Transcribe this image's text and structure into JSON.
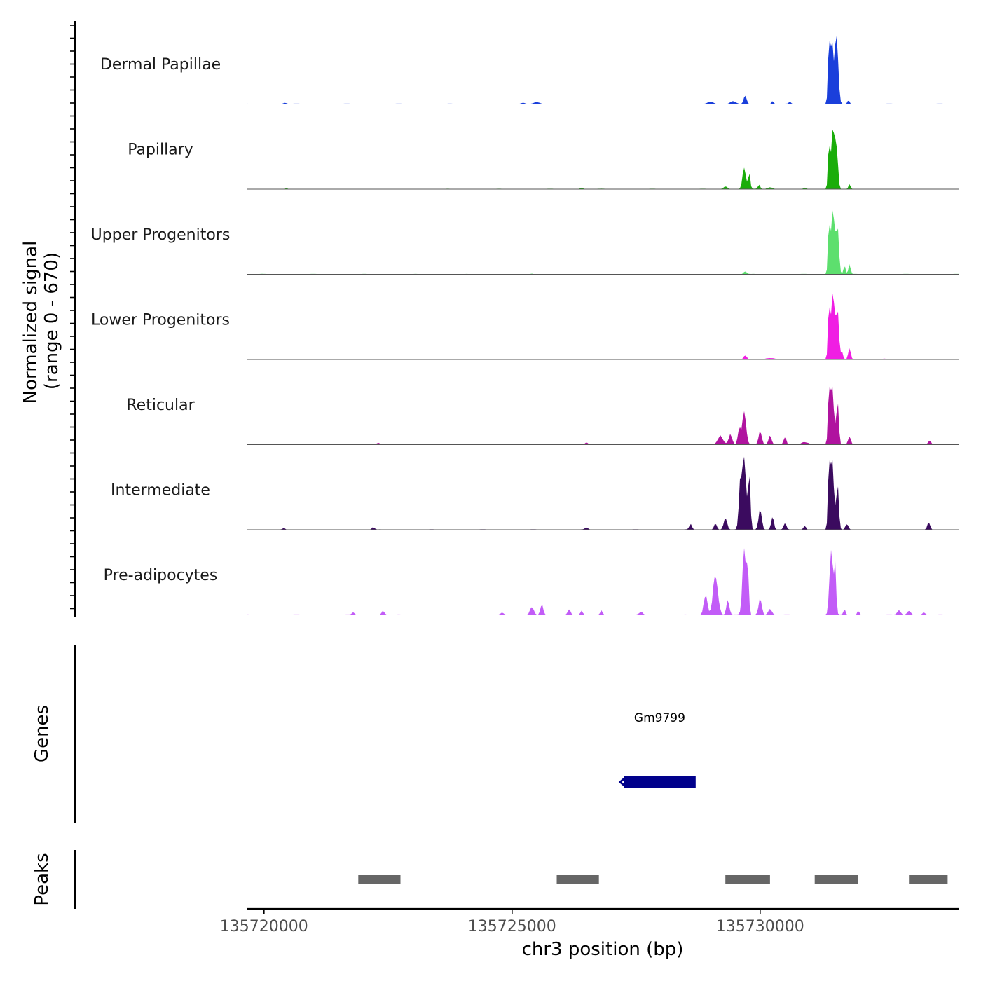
{
  "chart_data": {
    "type": "area",
    "title": "",
    "chromosome": "chr3",
    "xlabel": "chr3 position (bp)",
    "ylabel_line1": "Normalized signal",
    "ylabel_line2": "(range 0 - 670)",
    "xlim": [
      135719650,
      135734000
    ],
    "ylim": [
      0,
      670
    ],
    "x_ticks": [
      135720000,
      135725000,
      135730000
    ],
    "x_tick_labels": [
      "135720000",
      "135725000",
      "135730000"
    ],
    "tracks": [
      {
        "name": "Dermal Papillae",
        "color": "#1a3fdb",
        "peaks": [
          {
            "center": 135731450,
            "width": 110,
            "height": 560
          },
          {
            "center": 135731390,
            "width": 60,
            "height": 470
          },
          {
            "center": 135731530,
            "width": 60,
            "height": 460
          },
          {
            "center": 135731560,
            "width": 80,
            "height": 350
          },
          {
            "center": 135729700,
            "width": 80,
            "height": 85
          },
          {
            "center": 135729450,
            "width": 150,
            "height": 25
          },
          {
            "center": 135729000,
            "width": 160,
            "height": 22
          },
          {
            "center": 135731780,
            "width": 60,
            "height": 40
          },
          {
            "center": 135730250,
            "width": 60,
            "height": 28
          },
          {
            "center": 135730600,
            "width": 60,
            "height": 20
          },
          {
            "center": 135725500,
            "width": 160,
            "height": 20
          },
          {
            "center": 135725220,
            "width": 120,
            "height": 12
          },
          {
            "center": 135720420,
            "width": 100,
            "height": 12
          }
        ]
      },
      {
        "name": "Papillary",
        "color": "#1aad0a",
        "peaks": [
          {
            "center": 135731470,
            "width": 100,
            "height": 560
          },
          {
            "center": 135731390,
            "width": 60,
            "height": 420
          },
          {
            "center": 135731540,
            "width": 80,
            "height": 380
          },
          {
            "center": 135729680,
            "width": 100,
            "height": 200
          },
          {
            "center": 135729780,
            "width": 60,
            "height": 150
          },
          {
            "center": 135729300,
            "width": 120,
            "height": 25
          },
          {
            "center": 135729980,
            "width": 60,
            "height": 45
          },
          {
            "center": 135731800,
            "width": 60,
            "height": 50
          },
          {
            "center": 135730200,
            "width": 150,
            "height": 18
          },
          {
            "center": 135730900,
            "width": 60,
            "height": 12
          },
          {
            "center": 135726400,
            "width": 80,
            "height": 14
          },
          {
            "center": 135720450,
            "width": 60,
            "height": 10
          }
        ]
      },
      {
        "name": "Upper Progenitors",
        "color": "#5ddf6e",
        "peaks": [
          {
            "center": 135731470,
            "width": 110,
            "height": 600
          },
          {
            "center": 135731390,
            "width": 60,
            "height": 450
          },
          {
            "center": 135731560,
            "width": 80,
            "height": 420
          },
          {
            "center": 135731800,
            "width": 60,
            "height": 100
          },
          {
            "center": 135731700,
            "width": 60,
            "height": 80
          },
          {
            "center": 135729700,
            "width": 90,
            "height": 28
          },
          {
            "center": 135725400,
            "width": 60,
            "height": 8
          }
        ]
      },
      {
        "name": "Lower Progenitors",
        "color": "#f01ee3",
        "peaks": [
          {
            "center": 135731470,
            "width": 110,
            "height": 620
          },
          {
            "center": 135731390,
            "width": 60,
            "height": 480
          },
          {
            "center": 135731560,
            "width": 80,
            "height": 440
          },
          {
            "center": 135731800,
            "width": 70,
            "height": 110
          },
          {
            "center": 135731650,
            "width": 60,
            "height": 80
          },
          {
            "center": 135729700,
            "width": 90,
            "height": 40
          },
          {
            "center": 135730200,
            "width": 300,
            "height": 10
          },
          {
            "center": 135732500,
            "width": 200,
            "height": 8
          }
        ]
      },
      {
        "name": "Reticular",
        "color": "#b0139f",
        "peaks": [
          {
            "center": 135731450,
            "width": 110,
            "height": 530
          },
          {
            "center": 135731390,
            "width": 60,
            "height": 420
          },
          {
            "center": 135731560,
            "width": 70,
            "height": 400
          },
          {
            "center": 135729680,
            "width": 110,
            "height": 310
          },
          {
            "center": 135729580,
            "width": 80,
            "height": 160
          },
          {
            "center": 135729200,
            "width": 150,
            "height": 80
          },
          {
            "center": 135729400,
            "width": 100,
            "height": 100
          },
          {
            "center": 135730000,
            "width": 90,
            "height": 130
          },
          {
            "center": 135730200,
            "width": 80,
            "height": 90
          },
          {
            "center": 135730500,
            "width": 80,
            "height": 70
          },
          {
            "center": 135731800,
            "width": 80,
            "height": 80
          },
          {
            "center": 135733420,
            "width": 80,
            "height": 40
          },
          {
            "center": 135730900,
            "width": 200,
            "height": 25
          },
          {
            "center": 135726500,
            "width": 80,
            "height": 20
          },
          {
            "center": 135722300,
            "width": 80,
            "height": 15
          }
        ]
      },
      {
        "name": "Intermediate",
        "color": "#3b0b5f",
        "peaks": [
          {
            "center": 135729680,
            "width": 110,
            "height": 670
          },
          {
            "center": 135729600,
            "width": 80,
            "height": 450
          },
          {
            "center": 135729780,
            "width": 70,
            "height": 500
          },
          {
            "center": 135731450,
            "width": 110,
            "height": 640
          },
          {
            "center": 135731390,
            "width": 60,
            "height": 500
          },
          {
            "center": 135731560,
            "width": 70,
            "height": 420
          },
          {
            "center": 135729300,
            "width": 100,
            "height": 110
          },
          {
            "center": 135729100,
            "width": 80,
            "height": 60
          },
          {
            "center": 135728600,
            "width": 80,
            "height": 50
          },
          {
            "center": 135730000,
            "width": 90,
            "height": 200
          },
          {
            "center": 135730250,
            "width": 80,
            "height": 120
          },
          {
            "center": 135730500,
            "width": 80,
            "height": 60
          },
          {
            "center": 135731750,
            "width": 80,
            "height": 60
          },
          {
            "center": 135733400,
            "width": 80,
            "height": 70
          },
          {
            "center": 135730900,
            "width": 70,
            "height": 40
          },
          {
            "center": 135722200,
            "width": 80,
            "height": 25
          },
          {
            "center": 135726500,
            "width": 80,
            "height": 20
          },
          {
            "center": 135720400,
            "width": 80,
            "height": 15
          }
        ]
      },
      {
        "name": "Pre-adipocytes",
        "color": "#c25cf7",
        "peaks": [
          {
            "center": 135729680,
            "width": 100,
            "height": 620
          },
          {
            "center": 135729750,
            "width": 60,
            "height": 460
          },
          {
            "center": 135731430,
            "width": 90,
            "height": 640
          },
          {
            "center": 135731510,
            "width": 60,
            "height": 520
          },
          {
            "center": 135729100,
            "width": 140,
            "height": 380
          },
          {
            "center": 135728900,
            "width": 100,
            "height": 200
          },
          {
            "center": 135729350,
            "width": 80,
            "height": 150
          },
          {
            "center": 135730000,
            "width": 90,
            "height": 160
          },
          {
            "center": 135730200,
            "width": 100,
            "height": 60
          },
          {
            "center": 135725400,
            "width": 100,
            "height": 80
          },
          {
            "center": 135725600,
            "width": 80,
            "height": 100
          },
          {
            "center": 135726150,
            "width": 80,
            "height": 55
          },
          {
            "center": 135726400,
            "width": 60,
            "height": 40
          },
          {
            "center": 135726800,
            "width": 60,
            "height": 45
          },
          {
            "center": 135731700,
            "width": 60,
            "height": 50
          },
          {
            "center": 135731980,
            "width": 60,
            "height": 40
          },
          {
            "center": 135732800,
            "width": 100,
            "height": 45
          },
          {
            "center": 135733000,
            "width": 100,
            "height": 40
          },
          {
            "center": 135733300,
            "width": 80,
            "height": 25
          },
          {
            "center": 135722400,
            "width": 80,
            "height": 40
          },
          {
            "center": 135721800,
            "width": 70,
            "height": 25
          },
          {
            "center": 135724800,
            "width": 80,
            "height": 20
          },
          {
            "center": 135727600,
            "width": 100,
            "height": 30
          }
        ]
      }
    ],
    "genes_panel": {
      "label": "Genes",
      "genes": [
        {
          "name": "Gm9799",
          "start": 135727250,
          "end": 135728700,
          "strand": "-",
          "color": "#00008b"
        }
      ]
    },
    "peaks_panel": {
      "label": "Peaks",
      "color": "#666666",
      "regions": [
        {
          "start": 135721900,
          "end": 135722750
        },
        {
          "start": 135725900,
          "end": 135726750
        },
        {
          "start": 135729300,
          "end": 135730200
        },
        {
          "start": 135731100,
          "end": 135731980
        },
        {
          "start": 135733000,
          "end": 135733780
        }
      ]
    }
  }
}
